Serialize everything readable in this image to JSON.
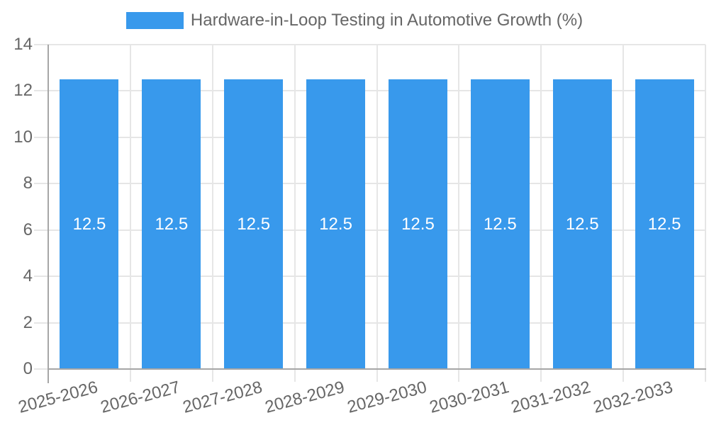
{
  "legend": {
    "label": "Hardware-in-Loop Testing in Automotive Growth (%)",
    "swatch_color": "#3899EC",
    "position": "top"
  },
  "chart_data": {
    "type": "bar",
    "title": "Hardware-in-Loop Testing in Automotive Growth (%)",
    "categories": [
      "2025-2026",
      "2026-2027",
      "2027-2028",
      "2028-2029",
      "2029-2030",
      "2030-2031",
      "2031-2032",
      "2032-2033"
    ],
    "values": [
      12.5,
      12.5,
      12.5,
      12.5,
      12.5,
      12.5,
      12.5,
      12.5
    ],
    "data_labels": [
      "12.5",
      "12.5",
      "12.5",
      "12.5",
      "12.5",
      "12.5",
      "12.5",
      "12.5"
    ],
    "xlabel": "",
    "ylabel": "",
    "ylim": [
      0,
      14
    ],
    "yticks": [
      0,
      2,
      4,
      6,
      8,
      10,
      12,
      14
    ],
    "x_tick_rotation_deg": -15,
    "grid": true,
    "legend_position": "top",
    "colors": {
      "bar": "#3899EC",
      "bar_label": "#ffffff",
      "grid": "#e6e6e6",
      "axis": "#a6a6a6",
      "tick_label": "#666666",
      "background": "#ffffff"
    }
  }
}
